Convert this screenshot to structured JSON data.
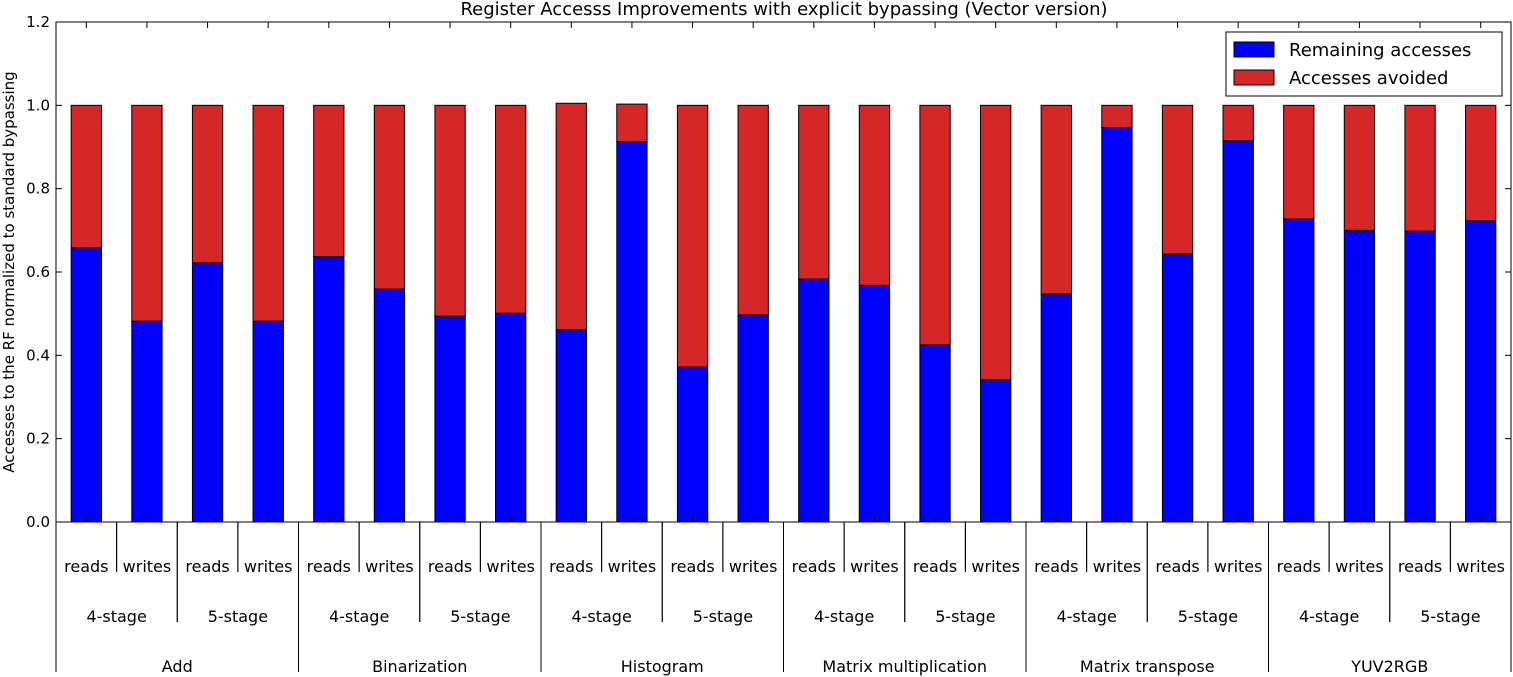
{
  "chart_data": {
    "type": "bar",
    "stacked": true,
    "title": "Register Accesss Improvements with explicit bypassing (Vector version)",
    "ylabel": "Accesses to the RF normalized to standard bypassing",
    "xlabel": "",
    "ylim": [
      0,
      1.2
    ],
    "yticks": [
      "0.0",
      "0.2",
      "0.4",
      "0.6",
      "0.8",
      "1.0",
      "1.2"
    ],
    "grid": false,
    "legend_position": "top-right",
    "colors": {
      "remaining": "#0000ff",
      "avoided": "#d62728"
    },
    "categories": [
      {
        "group": "Add",
        "stage": "4-stage",
        "access": "reads"
      },
      {
        "group": "Add",
        "stage": "4-stage",
        "access": "writes"
      },
      {
        "group": "Add",
        "stage": "5-stage",
        "access": "reads"
      },
      {
        "group": "Add",
        "stage": "5-stage",
        "access": "writes"
      },
      {
        "group": "Binarization",
        "stage": "4-stage",
        "access": "reads"
      },
      {
        "group": "Binarization",
        "stage": "4-stage",
        "access": "writes"
      },
      {
        "group": "Binarization",
        "stage": "5-stage",
        "access": "reads"
      },
      {
        "group": "Binarization",
        "stage": "5-stage",
        "access": "writes"
      },
      {
        "group": "Histogram",
        "stage": "4-stage",
        "access": "reads"
      },
      {
        "group": "Histogram",
        "stage": "4-stage",
        "access": "writes"
      },
      {
        "group": "Histogram",
        "stage": "5-stage",
        "access": "reads"
      },
      {
        "group": "Histogram",
        "stage": "5-stage",
        "access": "writes"
      },
      {
        "group": "Matrix multiplication",
        "stage": "4-stage",
        "access": "reads"
      },
      {
        "group": "Matrix multiplication",
        "stage": "4-stage",
        "access": "writes"
      },
      {
        "group": "Matrix multiplication",
        "stage": "5-stage",
        "access": "reads"
      },
      {
        "group": "Matrix multiplication",
        "stage": "5-stage",
        "access": "writes"
      },
      {
        "group": "Matrix transpose",
        "stage": "4-stage",
        "access": "reads"
      },
      {
        "group": "Matrix transpose",
        "stage": "4-stage",
        "access": "writes"
      },
      {
        "group": "Matrix transpose",
        "stage": "5-stage",
        "access": "reads"
      },
      {
        "group": "Matrix transpose",
        "stage": "5-stage",
        "access": "writes"
      },
      {
        "group": "YUV2RGB",
        "stage": "4-stage",
        "access": "reads"
      },
      {
        "group": "YUV2RGB",
        "stage": "4-stage",
        "access": "writes"
      },
      {
        "group": "YUV2RGB",
        "stage": "5-stage",
        "access": "reads"
      },
      {
        "group": "YUV2RGB",
        "stage": "5-stage",
        "access": "writes"
      }
    ],
    "series": [
      {
        "name": "Remaining accesses",
        "values": [
          0.658,
          0.482,
          0.622,
          0.482,
          0.637,
          0.559,
          0.494,
          0.501,
          0.461,
          0.913,
          0.372,
          0.497,
          0.583,
          0.568,
          0.425,
          0.341,
          0.547,
          0.947,
          0.643,
          0.915,
          0.727,
          0.7,
          0.698,
          0.723
        ]
      },
      {
        "name": "Accesses avoided",
        "values": [
          0.342,
          0.518,
          0.378,
          0.518,
          0.363,
          0.441,
          0.506,
          0.499,
          0.544,
          0.09,
          0.628,
          0.503,
          0.417,
          0.432,
          0.575,
          0.659,
          0.453,
          0.053,
          0.357,
          0.085,
          0.273,
          0.3,
          0.302,
          0.277
        ]
      }
    ]
  }
}
